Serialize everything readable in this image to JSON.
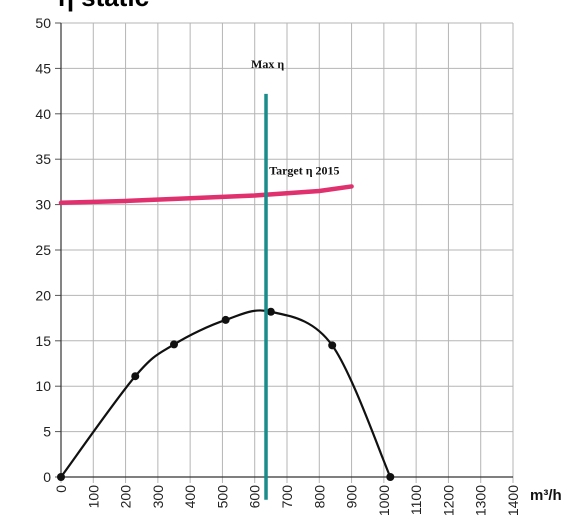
{
  "chart_data": {
    "type": "line",
    "title": "η static",
    "xlabel": "m³/h",
    "ylabel": "",
    "xlim": [
      0,
      1400
    ],
    "ylim": [
      0,
      50
    ],
    "x_ticks": [
      "0",
      "100",
      "200",
      "300",
      "400",
      "500",
      "600",
      "700",
      "800",
      "900",
      "1000",
      "1100",
      "1200",
      "1300",
      "1400"
    ],
    "y_ticks": [
      "0",
      "5",
      "10",
      "15",
      "20",
      "25",
      "30",
      "35",
      "40",
      "45",
      "50"
    ],
    "grid": true,
    "series": [
      {
        "name": "",
        "color": "#111111",
        "markers": true,
        "x": [
          0,
          230,
          350,
          510,
          650,
          840,
          1020
        ],
        "y": [
          0,
          11.1,
          14.6,
          17.3,
          18.2,
          14.5,
          0
        ]
      },
      {
        "name": "",
        "color": "#e0306e",
        "markers": false,
        "x": [
          0,
          200,
          400,
          600,
          800,
          900
        ],
        "y": [
          30.2,
          30.4,
          30.7,
          31.0,
          31.5,
          32.0
        ]
      }
    ],
    "annotations": [
      {
        "text": "Max  η",
        "type": "vertical-line",
        "x": 635,
        "y_range": [
          -2.5,
          42.2
        ],
        "color": "#1a8c8c"
      },
      {
        "text": "Target  η  2015",
        "type": "label",
        "x": 900,
        "y": 33.3
      }
    ]
  }
}
